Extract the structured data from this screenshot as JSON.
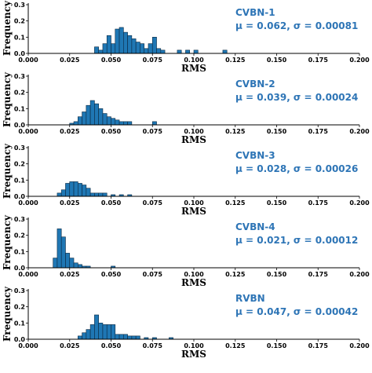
{
  "chart_data": [
    {
      "type": "bar",
      "panel_label": "CVBN-1",
      "stats_text": "μ = 0.062, σ = 0.00081",
      "xlabel": "RMS",
      "ylabel": "Frequency",
      "xlim": [
        0.0,
        0.2
      ],
      "ylim": [
        0.0,
        0.3
      ],
      "xticks": [
        "0.000",
        "0.025",
        "0.050",
        "0.075",
        "0.100",
        "0.125",
        "0.150",
        "0.175",
        "0.200"
      ],
      "yticks": [
        "0.0",
        "0.1",
        "0.2",
        "0.3"
      ],
      "bin_width": 0.0025,
      "x": [
        0.04,
        0.0425,
        0.045,
        0.0475,
        0.05,
        0.0525,
        0.055,
        0.0575,
        0.06,
        0.0625,
        0.065,
        0.0675,
        0.07,
        0.0725,
        0.075,
        0.0775,
        0.08,
        0.09,
        0.095,
        0.1,
        0.1175
      ],
      "values": [
        0.04,
        0.02,
        0.06,
        0.11,
        0.06,
        0.15,
        0.16,
        0.13,
        0.11,
        0.09,
        0.07,
        0.06,
        0.03,
        0.06,
        0.1,
        0.03,
        0.02,
        0.02,
        0.02,
        0.02,
        0.02
      ]
    },
    {
      "type": "bar",
      "panel_label": "CVBN-2",
      "stats_text": "μ = 0.039, σ = 0.00024",
      "xlabel": "RMS",
      "ylabel": "Frequency",
      "xlim": [
        0.0,
        0.2
      ],
      "ylim": [
        0.0,
        0.3
      ],
      "xticks": [
        "0.000",
        "0.025",
        "0.050",
        "0.075",
        "0.100",
        "0.125",
        "0.150",
        "0.175",
        "0.200"
      ],
      "yticks": [
        "0.0",
        "0.1",
        "0.2",
        "0.3"
      ],
      "bin_width": 0.0025,
      "x": [
        0.025,
        0.0275,
        0.03,
        0.0325,
        0.035,
        0.0375,
        0.04,
        0.0425,
        0.045,
        0.0475,
        0.05,
        0.0525,
        0.055,
        0.0575,
        0.06,
        0.075
      ],
      "values": [
        0.01,
        0.02,
        0.05,
        0.08,
        0.12,
        0.15,
        0.13,
        0.1,
        0.07,
        0.05,
        0.04,
        0.03,
        0.02,
        0.02,
        0.02,
        0.02
      ]
    },
    {
      "type": "bar",
      "panel_label": "CVBN-3",
      "stats_text": "μ = 0.028, σ = 0.00026",
      "xlabel": "RMS",
      "ylabel": "Frequency",
      "xlim": [
        0.0,
        0.2
      ],
      "ylim": [
        0.0,
        0.3
      ],
      "xticks": [
        "0.000",
        "0.025",
        "0.050",
        "0.075",
        "0.100",
        "0.125",
        "0.150",
        "0.175",
        "0.200"
      ],
      "yticks": [
        "0.0",
        "0.1",
        "0.2",
        "0.3"
      ],
      "bin_width": 0.0025,
      "x": [
        0.0175,
        0.02,
        0.0225,
        0.025,
        0.0275,
        0.03,
        0.0325,
        0.035,
        0.0375,
        0.04,
        0.0425,
        0.045,
        0.05,
        0.055,
        0.06
      ],
      "values": [
        0.02,
        0.04,
        0.08,
        0.09,
        0.09,
        0.08,
        0.07,
        0.05,
        0.02,
        0.02,
        0.02,
        0.02,
        0.01,
        0.01,
        0.01
      ]
    },
    {
      "type": "bar",
      "panel_label": "CVBN-4",
      "stats_text": "μ = 0.021, σ = 0.00012",
      "xlabel": "RMS",
      "ylabel": "Frequency",
      "xlim": [
        0.0,
        0.2
      ],
      "ylim": [
        0.0,
        0.3
      ],
      "xticks": [
        "0.000",
        "0.025",
        "0.050",
        "0.075",
        "0.100",
        "0.125",
        "0.150",
        "0.175",
        "0.200"
      ],
      "yticks": [
        "0.0",
        "0.1",
        "0.2",
        "0.3"
      ],
      "bin_width": 0.0025,
      "x": [
        0.015,
        0.0175,
        0.02,
        0.0225,
        0.025,
        0.0275,
        0.03,
        0.0325,
        0.035,
        0.05
      ],
      "values": [
        0.06,
        0.24,
        0.19,
        0.09,
        0.06,
        0.03,
        0.02,
        0.01,
        0.01,
        0.01
      ]
    },
    {
      "type": "bar",
      "panel_label": "RVBN",
      "stats_text": "μ = 0.047, σ = 0.00042",
      "xlabel": "RMS",
      "ylabel": "Frequency",
      "xlim": [
        0.0,
        0.2
      ],
      "ylim": [
        0.0,
        0.3
      ],
      "xticks": [
        "0.000",
        "0.025",
        "0.050",
        "0.075",
        "0.100",
        "0.125",
        "0.150",
        "0.175",
        "0.200"
      ],
      "yticks": [
        "0.0",
        "0.1",
        "0.2",
        "0.3"
      ],
      "bin_width": 0.0025,
      "x": [
        0.03,
        0.0325,
        0.035,
        0.0375,
        0.04,
        0.0425,
        0.045,
        0.0475,
        0.05,
        0.0525,
        0.055,
        0.0575,
        0.06,
        0.0625,
        0.065,
        0.07,
        0.075,
        0.085
      ],
      "values": [
        0.02,
        0.04,
        0.06,
        0.09,
        0.15,
        0.1,
        0.09,
        0.09,
        0.09,
        0.03,
        0.03,
        0.03,
        0.02,
        0.02,
        0.02,
        0.01,
        0.01,
        0.01
      ]
    }
  ]
}
